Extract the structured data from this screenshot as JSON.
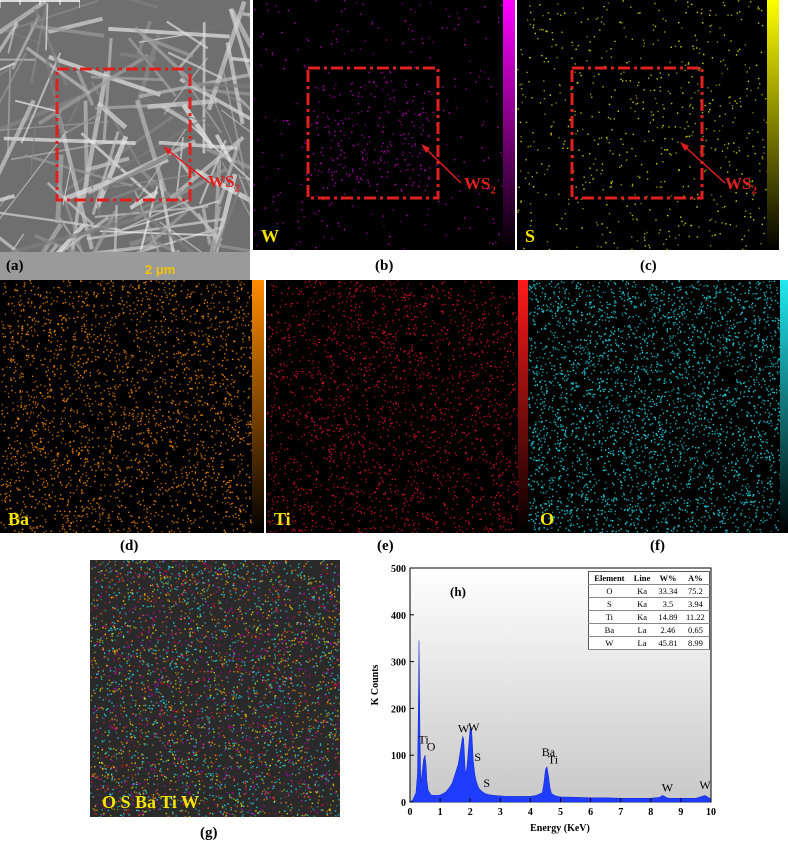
{
  "panels": {
    "a": {
      "caption": "(a)",
      "scale": "2 μm",
      "ws2": "WS",
      "ws2_sub": "2"
    },
    "b": {
      "caption": "(b)",
      "element": "W",
      "ws2": "WS",
      "ws2_sub": "2",
      "color": "#c000c0"
    },
    "c": {
      "caption": "(c)",
      "element": "S",
      "ws2": "WS",
      "ws2_sub": "2",
      "color": "#e0e000"
    },
    "d": {
      "caption": "(d)",
      "element": "Ba",
      "color": "#ff8c00"
    },
    "e": {
      "caption": "(e)",
      "element": "Ti",
      "color": "#ff1a1a"
    },
    "f": {
      "caption": "(f)",
      "element": "O",
      "color": "#22d8e6"
    },
    "g": {
      "caption": "(g)",
      "element": "O S Ba Ti W"
    },
    "h": {
      "caption": "(h)"
    }
  },
  "chart_data": {
    "type": "area",
    "title": "(h)",
    "xlabel": "Energy (KeV)",
    "ylabel": "K Counts",
    "xlim": [
      0,
      10
    ],
    "ylim": [
      0,
      500
    ],
    "xticks": [
      "0",
      "1",
      "2",
      "3",
      "4",
      "5",
      "6",
      "7",
      "8",
      "9",
      "10"
    ],
    "yticks": [
      "0",
      "100",
      "200",
      "300",
      "400",
      "500"
    ],
    "series": [
      {
        "x": [
          0.0,
          0.1,
          0.2,
          0.25,
          0.28,
          0.3,
          0.33,
          0.36,
          0.4,
          0.45,
          0.5,
          0.53,
          0.56,
          0.6,
          0.7,
          0.8,
          0.9,
          1.0,
          1.1,
          1.2,
          1.3,
          1.4,
          1.5,
          1.6,
          1.7,
          1.75,
          1.78,
          1.8,
          1.83,
          1.86,
          1.9,
          1.95,
          2.0,
          2.05,
          2.1,
          2.15,
          2.2,
          2.25,
          2.3,
          2.4,
          2.5,
          2.6,
          2.7,
          2.8,
          3.0,
          3.2,
          3.5,
          3.8,
          4.0,
          4.2,
          4.4,
          4.45,
          4.5,
          4.55,
          4.6,
          4.65,
          4.7,
          4.8,
          4.9,
          5.0,
          5.5,
          6.0,
          6.5,
          7.0,
          7.5,
          8.0,
          8.3,
          8.4,
          8.5,
          8.6,
          9.0,
          9.5,
          9.7,
          9.8,
          9.9,
          10.0
        ],
        "values": [
          0,
          5,
          20,
          60,
          200,
          345,
          150,
          40,
          60,
          90,
          100,
          80,
          45,
          25,
          15,
          14,
          14,
          15,
          18,
          22,
          30,
          40,
          60,
          80,
          120,
          140,
          135,
          110,
          70,
          60,
          80,
          120,
          160,
          150,
          90,
          60,
          45,
          35,
          28,
          22,
          18,
          16,
          15,
          14,
          13,
          12,
          12,
          12,
          12,
          14,
          20,
          40,
          70,
          75,
          55,
          30,
          18,
          14,
          12,
          11,
          10,
          9,
          9,
          8,
          8,
          8,
          10,
          14,
          10,
          8,
          8,
          8,
          12,
          14,
          10,
          6
        ]
      }
    ],
    "annotations": [
      "Ti",
      "O",
      "W",
      "W",
      "S",
      "S",
      "Ba",
      "Ti",
      "W",
      "W"
    ],
    "table": {
      "headers": [
        "Element",
        "Line",
        "W%",
        "A%"
      ],
      "rows": [
        [
          "O",
          "Ka",
          "33.34",
          "75.2"
        ],
        [
          "S",
          "Ka",
          "3.5",
          "3.94"
        ],
        [
          "Ti",
          "Ka",
          "14.89",
          "11.22"
        ],
        [
          "Ba",
          "La",
          "2.46",
          "0.65"
        ],
        [
          "W",
          "La",
          "45.81",
          "8.99"
        ]
      ]
    }
  }
}
